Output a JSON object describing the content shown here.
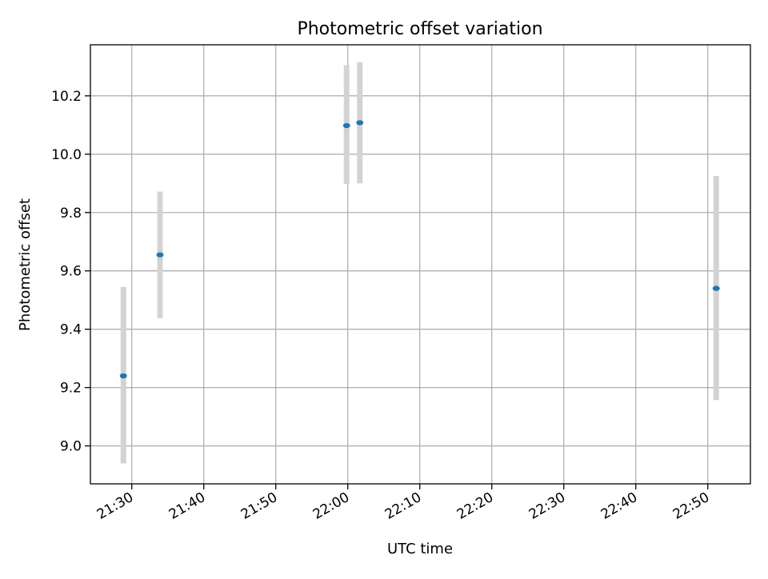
{
  "chart_data": {
    "type": "scatter",
    "title": "Photometric offset variation",
    "xlabel": "UTC time",
    "ylabel": "Photometric offset",
    "x_ticks": [
      "21:30",
      "21:40",
      "21:50",
      "22:00",
      "22:10",
      "22:20",
      "22:30",
      "22:40",
      "22:50"
    ],
    "y_ticks": [
      "9.0",
      "9.2",
      "9.4",
      "9.6",
      "9.8",
      "10.0",
      "10.2"
    ],
    "xlim": [
      "21:24:15",
      "22:55:55"
    ],
    "ylim": [
      8.87,
      10.375
    ],
    "grid": true,
    "series": [
      {
        "marker_color": "#1f77b4",
        "errorbar_color": "#d3d3d3",
        "points": [
          {
            "x": "21:28:50",
            "y": 9.24,
            "yerr_low": 8.94,
            "yerr_high": 9.545
          },
          {
            "x": "21:33:55",
            "y": 9.655,
            "yerr_low": 9.437,
            "yerr_high": 9.872
          },
          {
            "x": "21:59:50",
            "y": 10.098,
            "yerr_low": 9.898,
            "yerr_high": 10.305
          },
          {
            "x": "22:01:40",
            "y": 10.108,
            "yerr_low": 9.9,
            "yerr_high": 10.315
          },
          {
            "x": "22:51:10",
            "y": 9.54,
            "yerr_low": 9.157,
            "yerr_high": 9.925
          }
        ]
      }
    ]
  }
}
